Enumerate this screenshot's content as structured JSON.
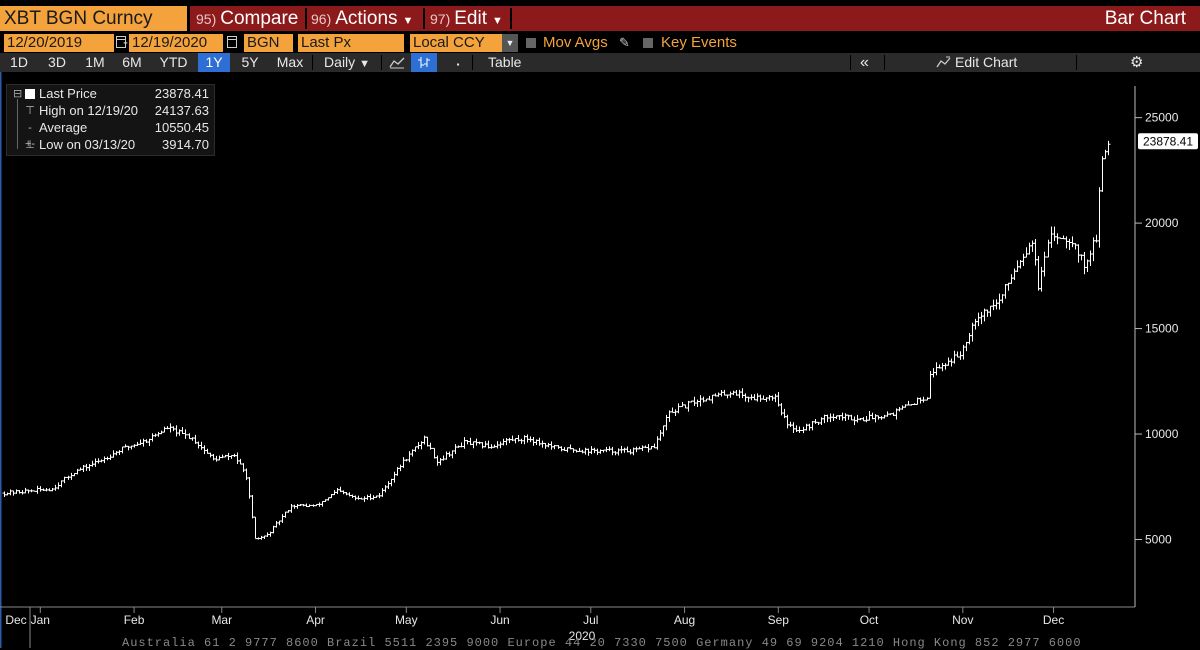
{
  "header": {
    "ticker": "XBT BGN Curncy",
    "menus": [
      {
        "num": "95)",
        "label": "Compare",
        "caret": false
      },
      {
        "num": "96)",
        "label": "Actions",
        "caret": true
      },
      {
        "num": "97)",
        "label": "Edit",
        "caret": true
      }
    ],
    "chart_kind": "Bar Chart"
  },
  "params": {
    "start_date": "12/20/2019",
    "end_date": "12/19/2020",
    "source": "BGN",
    "field": "Last Px",
    "currency": "Local CCY",
    "mov_avgs": "Mov Avgs",
    "key_events": "Key Events"
  },
  "toolbar": {
    "ranges": [
      "1D",
      "3D",
      "1M",
      "6M",
      "YTD",
      "1Y",
      "5Y",
      "Max"
    ],
    "active_range": "1Y",
    "frequency": "Daily",
    "table": "Table",
    "edit_chart": "Edit Chart",
    "caret_symbol": "▼",
    "collapse_symbol": "«",
    "gear_symbol": "⚙",
    "dots_symbol": "▪"
  },
  "legend": {
    "last_label": "Last Price",
    "last_value": "23878.41",
    "high_label": "High on 12/19/20",
    "high_value": "24137.63",
    "avg_label": "Average",
    "avg_value": "10550.45",
    "low_label": "Low on 03/13/20",
    "low_value": "3914.70"
  },
  "footer": "Australia 61 2 9777 8600 Brazil 5511 2395 9000 Europe 44 20 7330 7500 Germany 49 69 9204 1210 Hong Kong 852 2977 6000",
  "colors": {
    "accent": "#f3a23c",
    "menu_bar": "#8c1a1a",
    "active_button": "#2e6fd6",
    "series": "#ffffff"
  },
  "chart_data": {
    "type": "bar",
    "style": "ohlc",
    "series_name": "Last Price",
    "ylim": [
      1800,
      26500
    ],
    "yticks": [
      5000,
      10000,
      15000,
      20000,
      25000
    ],
    "last_value": 23878.41,
    "year_label": "2020",
    "months": [
      "Dec",
      "Jan",
      "Feb",
      "Mar",
      "Apr",
      "May",
      "Jun",
      "Jul",
      "Aug",
      "Sep",
      "Oct",
      "Nov",
      "Dec"
    ],
    "x_start": "2019-12-20",
    "x_end": "2020-12-19",
    "x_ticks": [
      "2019-12-01",
      "2020-01-01",
      "2020-02-01",
      "2020-03-01",
      "2020-04-01",
      "2020-05-01",
      "2020-06-01",
      "2020-07-01",
      "2020-08-01",
      "2020-09-01",
      "2020-10-01",
      "2020-11-01",
      "2020-12-01"
    ],
    "close_points": [
      [
        "2019-12-20",
        7200
      ],
      [
        "2019-12-28",
        7300
      ],
      [
        "2020-01-05",
        7400
      ],
      [
        "2020-01-12",
        8200
      ],
      [
        "2020-01-20",
        8700
      ],
      [
        "2020-01-28",
        9300
      ],
      [
        "2020-02-05",
        9700
      ],
      [
        "2020-02-12",
        10300
      ],
      [
        "2020-02-20",
        9800
      ],
      [
        "2020-02-27",
        8800
      ],
      [
        "2020-03-05",
        9000
      ],
      [
        "2020-03-09",
        8000
      ],
      [
        "2020-03-12",
        5000
      ],
      [
        "2020-03-16",
        5200
      ],
      [
        "2020-03-24",
        6600
      ],
      [
        "2020-04-01",
        6600
      ],
      [
        "2020-04-08",
        7300
      ],
      [
        "2020-04-15",
        6900
      ],
      [
        "2020-04-22",
        7100
      ],
      [
        "2020-04-30",
        8700
      ],
      [
        "2020-05-07",
        9800
      ],
      [
        "2020-05-11",
        8700
      ],
      [
        "2020-05-20",
        9600
      ],
      [
        "2020-05-29",
        9400
      ],
      [
        "2020-06-03",
        9700
      ],
      [
        "2020-06-10",
        9800
      ],
      [
        "2020-06-20",
        9300
      ],
      [
        "2020-07-01",
        9200
      ],
      [
        "2020-07-15",
        9200
      ],
      [
        "2020-07-22",
        9400
      ],
      [
        "2020-07-27",
        11000
      ],
      [
        "2020-08-05",
        11600
      ],
      [
        "2020-08-17",
        12000
      ],
      [
        "2020-08-23",
        11700
      ],
      [
        "2020-08-31",
        11800
      ],
      [
        "2020-09-04",
        10400
      ],
      [
        "2020-09-08",
        10200
      ],
      [
        "2020-09-18",
        10900
      ],
      [
        "2020-09-28",
        10700
      ],
      [
        "2020-10-09",
        11000
      ],
      [
        "2020-10-20",
        11800
      ],
      [
        "2020-10-21",
        12900
      ],
      [
        "2020-10-31",
        13800
      ],
      [
        "2020-11-05",
        15500
      ],
      [
        "2020-11-13",
        16300
      ],
      [
        "2020-11-18",
        17800
      ],
      [
        "2020-11-24",
        19200
      ],
      [
        "2020-11-26",
        17000
      ],
      [
        "2020-11-30",
        19500
      ],
      [
        "2020-12-07",
        19200
      ],
      [
        "2020-12-11",
        18000
      ],
      [
        "2020-12-15",
        19300
      ],
      [
        "2020-12-16",
        21300
      ],
      [
        "2020-12-17",
        23000
      ],
      [
        "2020-12-19",
        23878
      ]
    ]
  }
}
